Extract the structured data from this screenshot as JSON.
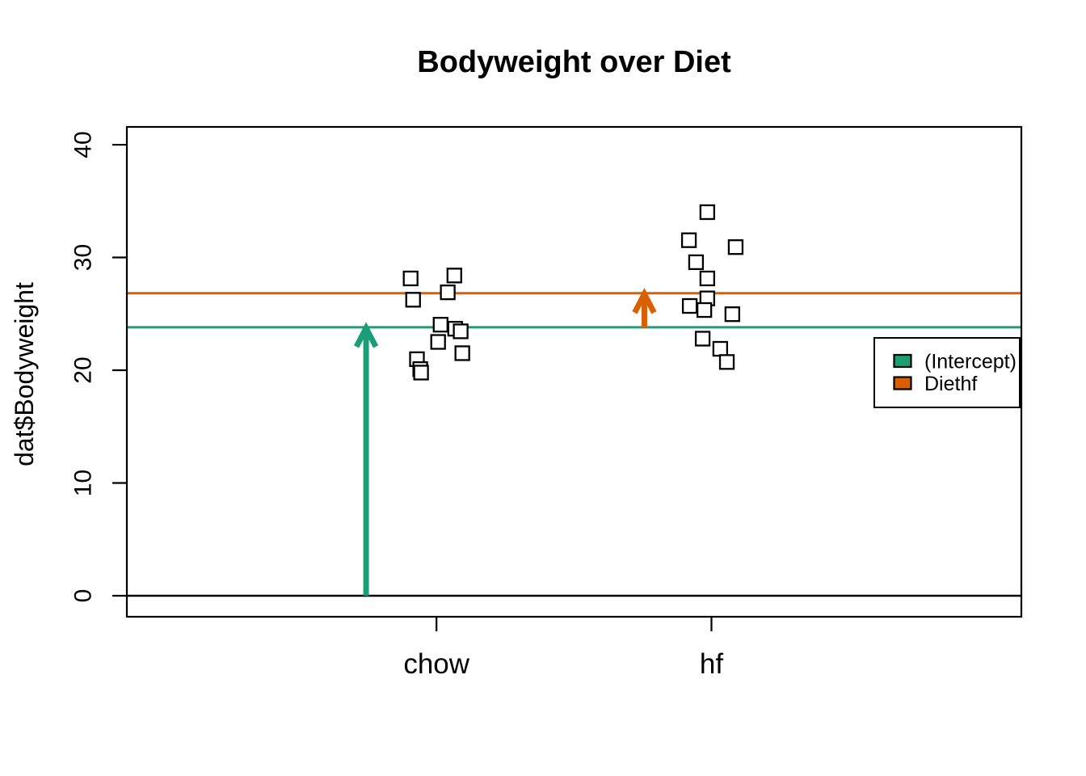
{
  "chart_data": {
    "type": "scatter",
    "title": "Bodyweight over Diet",
    "xlabel": "",
    "ylabel": "dat$Bodyweight",
    "categories": [
      "chow",
      "hf"
    ],
    "category_positions": [
      1,
      2
    ],
    "yticks": [
      0,
      10,
      20,
      30,
      40
    ],
    "xlim": [
      -0.126,
      3.127
    ],
    "ylim": [
      -1.864,
      41.58
    ],
    "grid": false,
    "point_style": "open-square",
    "series": [
      {
        "name": "chow",
        "points": [
          {
            "x": 0.906,
            "y": 28.14
          },
          {
            "x": 1.065,
            "y": 28.4
          },
          {
            "x": 1.041,
            "y": 26.91
          },
          {
            "x": 0.915,
            "y": 26.25
          },
          {
            "x": 1.015,
            "y": 24.04
          },
          {
            "x": 1.068,
            "y": 23.68
          },
          {
            "x": 1.088,
            "y": 23.45
          },
          {
            "x": 1.006,
            "y": 22.51
          },
          {
            "x": 1.094,
            "y": 21.51
          },
          {
            "x": 0.929,
            "y": 20.98
          },
          {
            "x": 0.941,
            "y": 20.1
          },
          {
            "x": 0.944,
            "y": 19.79
          }
        ]
      },
      {
        "name": "hf",
        "points": [
          {
            "x": 1.985,
            "y": 34.02
          },
          {
            "x": 1.918,
            "y": 31.53
          },
          {
            "x": 2.088,
            "y": 30.92
          },
          {
            "x": 1.944,
            "y": 29.58
          },
          {
            "x": 1.985,
            "y": 28.14
          },
          {
            "x": 1.985,
            "y": 26.37
          },
          {
            "x": 1.921,
            "y": 25.7
          },
          {
            "x": 1.974,
            "y": 25.34
          },
          {
            "x": 2.076,
            "y": 24.97
          },
          {
            "x": 1.968,
            "y": 22.8
          },
          {
            "x": 2.032,
            "y": 21.9
          },
          {
            "x": 2.056,
            "y": 20.73
          }
        ]
      }
    ],
    "hlines": [
      {
        "name": "zero-line",
        "value": 0,
        "color": "#000000",
        "width": 2.5
      },
      {
        "name": "intercept-line",
        "value": 23.81,
        "color": "#1B9E77",
        "width": 3
      },
      {
        "name": "diethf-line",
        "value": 26.83,
        "color": "#D95F02",
        "width": 3
      }
    ],
    "arrows": [
      {
        "name": "intercept-arrow",
        "x": 0.744,
        "y_from": 0,
        "y_to": 23.81,
        "color": "#1B9E77"
      },
      {
        "name": "diethf-arrow",
        "x": 1.756,
        "y_from": 23.81,
        "y_to": 26.83,
        "color": "#D95F02"
      }
    ],
    "legend": {
      "position": "right-middle",
      "items": [
        {
          "name": "intercept",
          "label": "(Intercept)",
          "color": "#1B9E77"
        },
        {
          "name": "diethf",
          "label": "Diethf",
          "color": "#D95F02"
        }
      ]
    }
  }
}
